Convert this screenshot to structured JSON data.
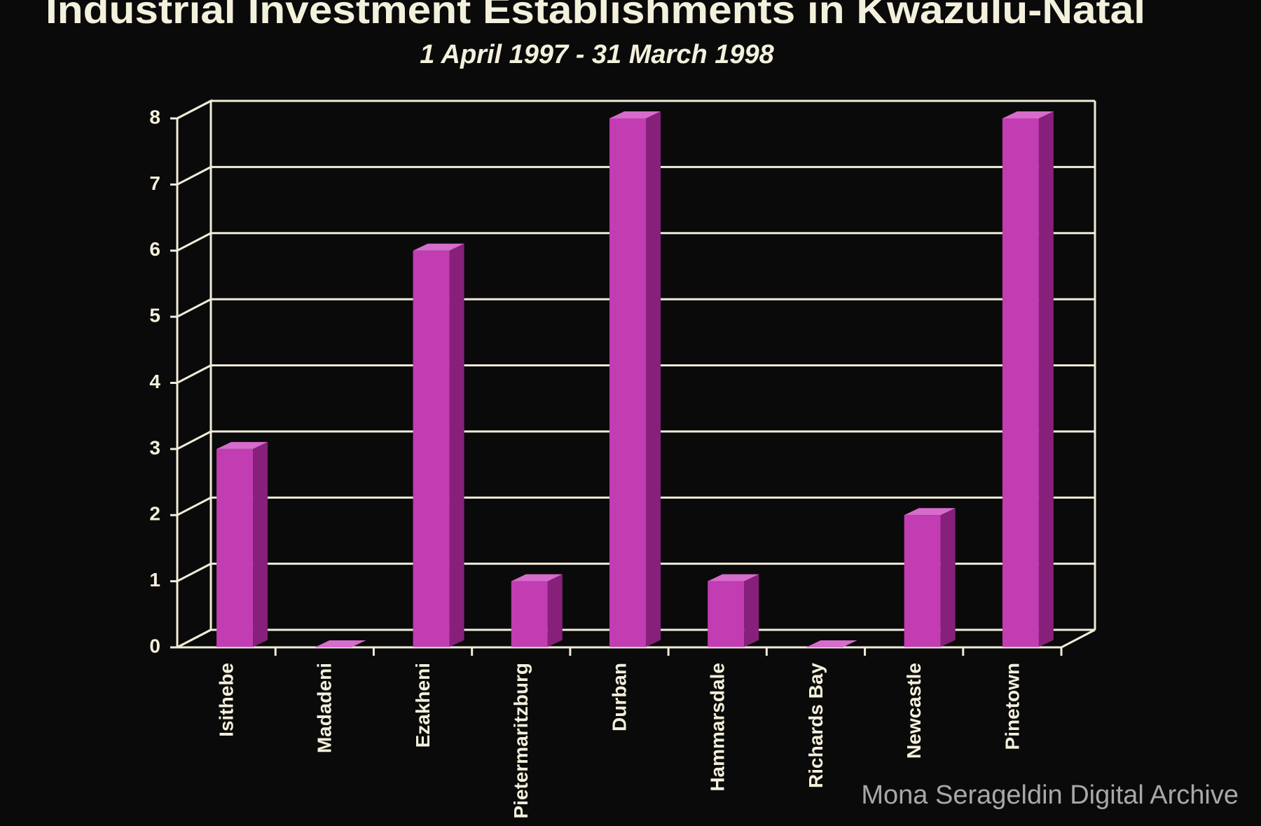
{
  "chart_data": {
    "type": "bar3d",
    "title": "Industrial Investment Establishments in  Kwazulu-Natal",
    "subtitle": "1 April 1997 - 31 March 1998",
    "categories": [
      "Isithebe",
      "Madadeni",
      "Ezakheni",
      "Pietermaritzburg",
      "Durban",
      "Hammarsdale",
      "Richards Bay",
      "Newcastle",
      "Pinetown"
    ],
    "values": [
      3,
      0,
      6,
      1,
      8,
      1,
      0,
      2,
      8
    ],
    "color": "#c23cb2",
    "ylim": [
      0,
      8
    ],
    "yticks": [
      0,
      1,
      2,
      3,
      4,
      5,
      6,
      7,
      8
    ],
    "grid": true
  },
  "watermark": "Mona Serageldin Digital Archive"
}
